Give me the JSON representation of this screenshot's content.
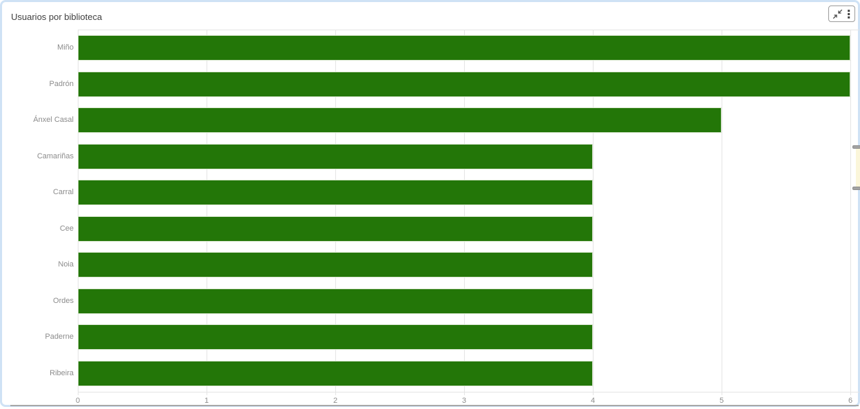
{
  "panel": {
    "title": "Usuarios por biblioteca",
    "controls": {
      "collapse_icon": "collapse-arrows-icon",
      "menu_icon": "kebab-menu-icon"
    }
  },
  "colors": {
    "bar": "#237608",
    "bar_stroke": "#d9e7cf",
    "frame_border": "#cfe2f5",
    "grid": "#e4e4e4",
    "axis_text": "#8c8c8c",
    "title_text": "#404040",
    "icon": "#4a4a4a",
    "scrollbar_thumb": "#fbf6da",
    "scrollbar_grip": "#a3a3a3",
    "bottom_divider": "#a8a8a8"
  },
  "chart_data": {
    "type": "bar",
    "orientation": "horizontal",
    "title": "Usuarios por biblioteca",
    "categories": [
      "Miño",
      "Padrón",
      "Ánxel Casal",
      "Camariñas",
      "Carral",
      "Cee",
      "Noia",
      "Ordes",
      "Paderne",
      "Ribeira"
    ],
    "values": [
      6,
      6,
      5,
      4,
      4,
      4,
      4,
      4,
      4,
      4
    ],
    "xlabel": "",
    "ylabel": "",
    "xlim": [
      0,
      6
    ],
    "x_ticks": [
      0,
      1,
      2,
      3,
      4,
      5,
      6
    ],
    "x_tick_labels": [
      "0",
      "1",
      "2",
      "3",
      "4",
      "5",
      "6"
    ],
    "grid": true,
    "legend": false
  }
}
